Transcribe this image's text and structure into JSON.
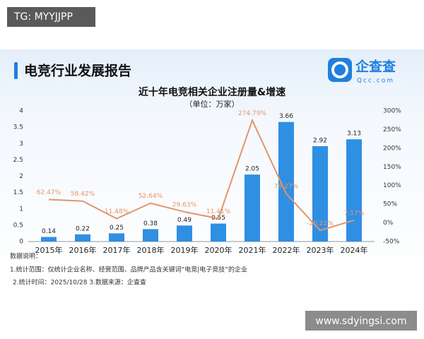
{
  "header": {
    "tag": "TG: MYYJJPP",
    "report_title": "电竞行业发展报告",
    "logo_name": "企查查",
    "logo_url": "Qcc.com"
  },
  "chart_data": {
    "type": "bar",
    "title": "近十年电竞相关企业注册量&增速",
    "subtitle": "（单位：万家）",
    "categories": [
      "2015年",
      "2016年",
      "2017年",
      "2018年",
      "2019年",
      "2020年",
      "2021年",
      "2022年",
      "2023年",
      "2024年"
    ],
    "series": [
      {
        "type": "bar",
        "color": "#2f8fe3",
        "values": [
          0.14,
          0.22,
          0.25,
          0.38,
          0.49,
          0.55,
          2.05,
          3.66,
          2.92,
          3.13
        ]
      },
      {
        "type": "line",
        "axis": "y2",
        "color": "#e3946b",
        "values": [
          62.47,
          58.42,
          11.48,
          52.64,
          29.63,
          11.41,
          274.79,
          78.27,
          -20.22,
          7.17
        ],
        "value_labels": [
          "62.47%",
          "58.42%",
          "11.48%",
          "52.64%",
          "29.63%",
          "11.41%",
          "274.79%",
          "78.27%",
          "-20.22%",
          "7.17%"
        ]
      }
    ],
    "ylim": [
      0,
      4
    ],
    "yticks": [
      0,
      0.5,
      1,
      1.5,
      2,
      2.5,
      3,
      3.5,
      4
    ],
    "y2lim": [
      -50,
      300
    ],
    "y2ticks": [
      {
        "value": -50,
        "label": "-50%"
      },
      {
        "value": 0,
        "label": "0%"
      },
      {
        "value": 50,
        "label": "50%"
      },
      {
        "value": 100,
        "label": "100%"
      },
      {
        "value": 150,
        "label": "150%"
      },
      {
        "value": 200,
        "label": "200%"
      },
      {
        "value": 250,
        "label": "250%"
      },
      {
        "value": 300,
        "label": "300%"
      }
    ]
  },
  "notes": [
    "数据说明：",
    "1.统计范围：仅统计企业名称、经营范围、品牌产品含关键词“电竞|电子竞技”的企业",
    "2.统计时间：2025/10/28 3.数据来源：企查查"
  ],
  "watermark": "www.sdyingsi.com"
}
